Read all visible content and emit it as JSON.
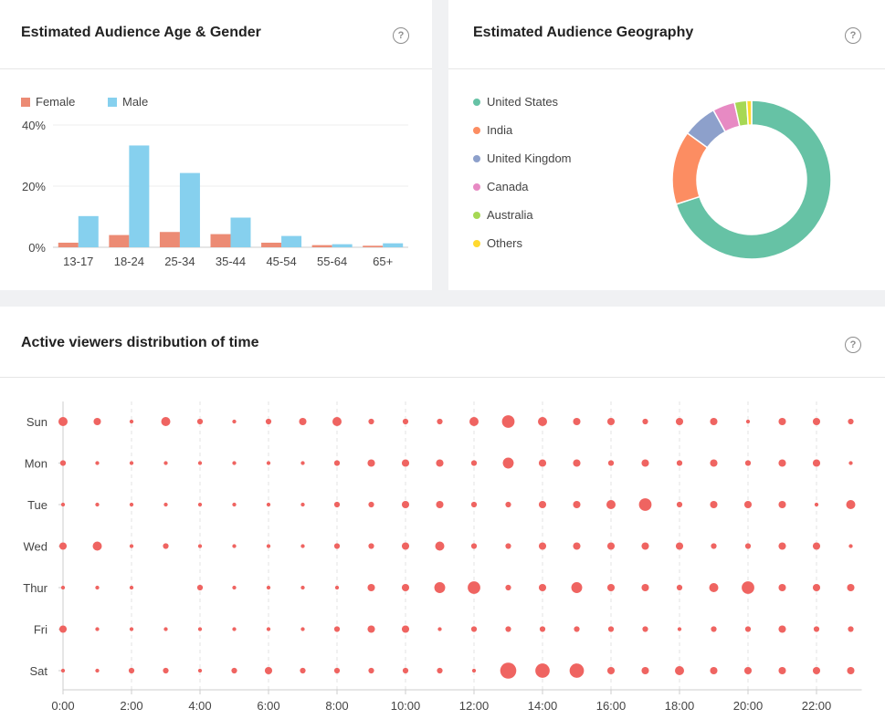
{
  "age_gender": {
    "title": "Estimated Audience Age & Gender",
    "help": "?",
    "chart_data": {
      "type": "bar",
      "categories": [
        "13-17",
        "18-24",
        "25-34",
        "35-44",
        "45-54",
        "55-64",
        "65+"
      ],
      "series": [
        {
          "name": "Female",
          "color": "#ec8b74",
          "values": [
            1.5,
            4,
            5,
            4.3,
            1.5,
            0.7,
            0.5
          ]
        },
        {
          "name": "Male",
          "color": "#86d0ee",
          "values": [
            10.2,
            33.3,
            24.3,
            9.7,
            3.7,
            1,
            1.3
          ]
        }
      ],
      "yticks": [
        "0%",
        "20%",
        "40%"
      ],
      "ylim": [
        0,
        40
      ],
      "grid": true,
      "legend": "top-left"
    }
  },
  "geography": {
    "title": "Estimated Audience Geography",
    "help": "?",
    "chart_data": {
      "type": "pie",
      "labels": [
        "United States",
        "India",
        "United Kingdom",
        "Canada",
        "Australia",
        "Others"
      ],
      "values": [
        70,
        15,
        7,
        4.5,
        2.5,
        1
      ],
      "colors": [
        "#66c2a5",
        "#fc8d62",
        "#8da0cb",
        "#e78ac3",
        "#a6d854",
        "#ffd92f"
      ],
      "legend": "left"
    }
  },
  "viewers_time": {
    "title": "Active viewers distribution of time",
    "help": "?",
    "chart_data": {
      "type": "scatter",
      "color": "#ef6461",
      "days": [
        "Sun",
        "Mon",
        "Tue",
        "Wed",
        "Thur",
        "Fri",
        "Sat"
      ],
      "hours": [
        0,
        1,
        2,
        3,
        4,
        5,
        6,
        7,
        8,
        9,
        10,
        11,
        12,
        13,
        14,
        15,
        16,
        17,
        18,
        19,
        20,
        21,
        22,
        23
      ],
      "xticks": [
        "0:00",
        "2:00",
        "4:00",
        "6:00",
        "8:00",
        "10:00",
        "12:00",
        "14:00",
        "16:00",
        "18:00",
        "20:00",
        "22:00"
      ],
      "values": [
        [
          4,
          3,
          1,
          4,
          2,
          1,
          2,
          3,
          4,
          2,
          2,
          2,
          4,
          6,
          4,
          3,
          3,
          2,
          3,
          3,
          1,
          3,
          3,
          2
        ],
        [
          2,
          1,
          1,
          1,
          1,
          1,
          1,
          1,
          2,
          3,
          3,
          3,
          2,
          5,
          3,
          3,
          2,
          3,
          2,
          3,
          2,
          3,
          3,
          1
        ],
        [
          1,
          1,
          1,
          1,
          1,
          1,
          1,
          1,
          2,
          2,
          3,
          3,
          2,
          2,
          3,
          3,
          4,
          6,
          2,
          3,
          3,
          3,
          1,
          4
        ],
        [
          3,
          4,
          1,
          2,
          1,
          1,
          1,
          1,
          2,
          2,
          3,
          4,
          2,
          2,
          3,
          3,
          3,
          3,
          3,
          2,
          2,
          3,
          3,
          1
        ],
        [
          1,
          1,
          1,
          0,
          2,
          1,
          1,
          1,
          1,
          3,
          3,
          5,
          6,
          2,
          3,
          5,
          3,
          3,
          2,
          4,
          6,
          3,
          3,
          3
        ],
        [
          3,
          1,
          1,
          1,
          1,
          1,
          1,
          1,
          2,
          3,
          3,
          1,
          2,
          2,
          2,
          2,
          2,
          2,
          1,
          2,
          2,
          3,
          2,
          2
        ],
        [
          1,
          1,
          2,
          2,
          1,
          2,
          3,
          2,
          2,
          2,
          2,
          2,
          1,
          8,
          7,
          7,
          3,
          3,
          4,
          3,
          3,
          3,
          3,
          3
        ]
      ]
    }
  }
}
